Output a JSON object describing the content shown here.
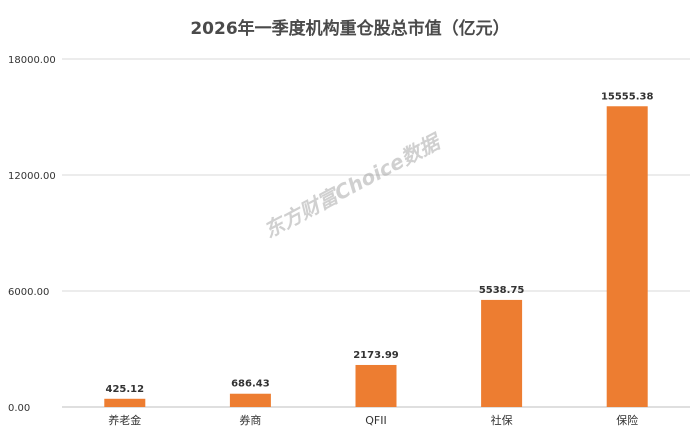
{
  "title": "2026年一季度机构重仓股总市值（亿元）",
  "watermark": "东方财富Choice数据",
  "colors": {
    "bar": "#ED7D31",
    "grid": "#D9D9D9",
    "axis": "#BFBFBF",
    "text": "#333333"
  },
  "chart_data": {
    "type": "bar",
    "title": "2026年一季度机构重仓股总市值（亿元）",
    "categories": [
      "养老金",
      "券商",
      "QFII",
      "社保",
      "保险"
    ],
    "values": [
      425.12,
      686.43,
      2173.99,
      5538.75,
      15555.38
    ],
    "value_labels": [
      "425.12",
      "686.43",
      "2173.99",
      "5538.75",
      "15555.38"
    ],
    "ylim": [
      0,
      18000
    ],
    "yticks": [
      0,
      6000,
      12000,
      18000
    ],
    "ytick_labels": [
      "0.00",
      "6000.00",
      "12000.00",
      "18000.00"
    ],
    "grid": true,
    "legend": "none"
  }
}
